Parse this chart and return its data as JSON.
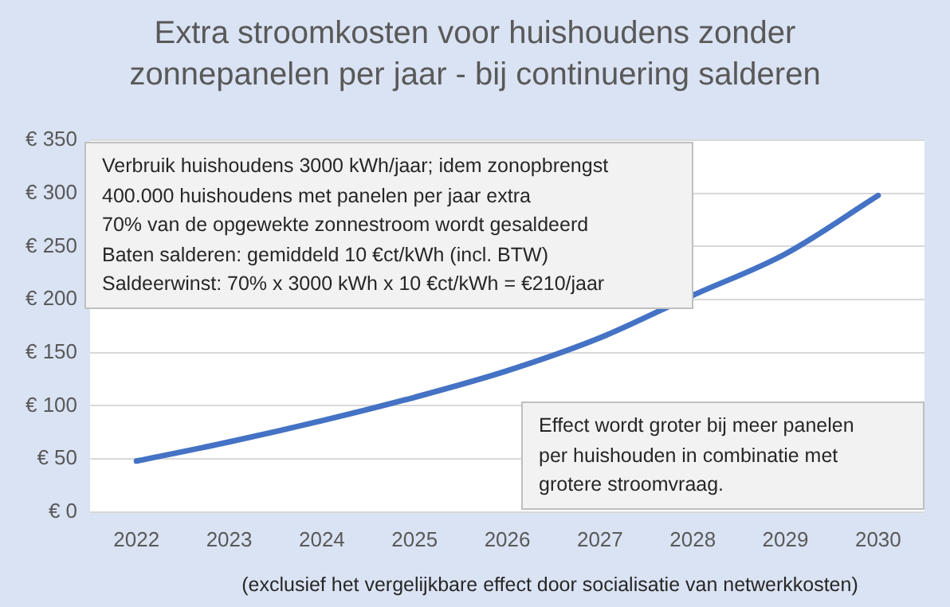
{
  "chart_data": {
    "type": "line",
    "title": "Extra stroomkosten voor huishoudens zonder zonnepanelen per jaar - bij continuering salderen",
    "categories": [
      "2022",
      "2023",
      "2024",
      "2025",
      "2026",
      "2027",
      "2028",
      "2029",
      "2030"
    ],
    "series": [
      {
        "color": "#4472c4",
        "values": [
          48,
          66,
          86,
          108,
          133,
          164,
          204,
          243,
          298
        ]
      }
    ],
    "ylim": [
      0,
      350
    ],
    "yticks": [
      {
        "value": 0,
        "label": "€ 0"
      },
      {
        "value": 50,
        "label": "€ 50"
      },
      {
        "value": 100,
        "label": "€ 100"
      },
      {
        "value": 150,
        "label": "€ 150"
      },
      {
        "value": 200,
        "label": "€ 200"
      },
      {
        "value": 250,
        "label": "€ 250"
      },
      {
        "value": 300,
        "label": "€ 300"
      },
      {
        "value": 350,
        "label": "€ 350"
      }
    ],
    "grid": "y",
    "legend": false,
    "marker": "none",
    "line_style": "solid",
    "annotations": [
      "Verbruik huishoudens 3000 kWh/jaar; idem zonopbrengst\n400.000 huishoudens met panelen per jaar extra\n70% van de opgewekte zonnestroom wordt gesaldeerd\nBaten salderen: gemiddeld 10 €ct/kWh (incl. BTW)\nSaldeerwinst: 70% x 3000 kWh x 10 €ct/kWh = €210/jaar",
      "Effect wordt groter bij meer panelen\nper huishouden in combinatie met\ngrotere stroomvraag.",
      "(exclusief het vergelijkbare effect door socialisatie van netwerkkosten)"
    ]
  }
}
